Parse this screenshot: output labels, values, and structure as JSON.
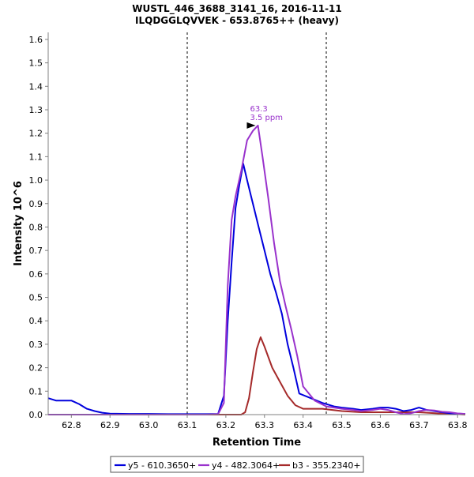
{
  "chart_data": {
    "type": "line",
    "title_line1": "WUSTL_446_3688_3141_16, 2016-11-11",
    "title_line2": "ILQDGGLQVVEK - 653.8765++ (heavy)",
    "xlabel": "Retention Time",
    "ylabel": "Intensity 10^6",
    "xlim": [
      62.74,
      63.82
    ],
    "ylim": [
      0,
      1.63
    ],
    "x_ticks": [
      62.8,
      62.9,
      63.0,
      63.1,
      63.2,
      63.3,
      63.4,
      63.5,
      63.6,
      63.7,
      63.8
    ],
    "x_tick_labels": [
      "62.8",
      "62.9",
      "63.0",
      "63.1",
      "63.2",
      "63.3",
      "63.4",
      "63.5",
      "63.6",
      "63.7",
      "63.8"
    ],
    "y_ticks": [
      0.0,
      0.1,
      0.2,
      0.3,
      0.4,
      0.5,
      0.6,
      0.7,
      0.8,
      0.9,
      1.0,
      1.1,
      1.2,
      1.3,
      1.4,
      1.5,
      1.6
    ],
    "y_tick_labels": [
      "0.0",
      "0.1",
      "0.2",
      "0.3",
      "0.4",
      "0.5",
      "0.6",
      "0.7",
      "0.8",
      "0.9",
      "1.0",
      "1.1",
      "1.2",
      "1.3",
      "1.4",
      "1.5",
      "1.6"
    ],
    "integration_boundaries": [
      63.1,
      63.46
    ],
    "annotation": {
      "x": 63.283,
      "y": 1.233,
      "rt_label": "63.3",
      "ppm_label": "3.5 ppm",
      "color": "#9932CC"
    },
    "series": [
      {
        "name": "y5 - 610.3650+",
        "color": "#0000DD",
        "x": [
          62.74,
          62.76,
          62.78,
          62.8,
          62.82,
          62.84,
          62.86,
          62.88,
          62.9,
          62.95,
          63.0,
          63.05,
          63.1,
          63.15,
          63.18,
          63.195,
          63.205,
          63.215,
          63.225,
          63.235,
          63.245,
          63.255,
          63.27,
          63.285,
          63.3,
          63.315,
          63.33,
          63.345,
          63.36,
          63.375,
          63.39,
          63.42,
          63.45,
          63.48,
          63.5,
          63.53,
          63.55,
          63.58,
          63.6,
          63.62,
          63.64,
          63.66,
          63.68,
          63.7,
          63.72,
          63.74,
          63.76,
          63.78,
          63.8,
          63.82
        ],
        "values": [
          0.07,
          0.06,
          0.06,
          0.06,
          0.045,
          0.025,
          0.015,
          0.008,
          0.004,
          0.003,
          0.003,
          0.002,
          0.002,
          0.002,
          0.003,
          0.08,
          0.4,
          0.65,
          0.88,
          0.98,
          1.07,
          1.0,
          0.9,
          0.8,
          0.7,
          0.6,
          0.52,
          0.43,
          0.3,
          0.2,
          0.09,
          0.07,
          0.05,
          0.035,
          0.03,
          0.025,
          0.02,
          0.025,
          0.03,
          0.03,
          0.025,
          0.015,
          0.02,
          0.03,
          0.02,
          0.015,
          0.01,
          0.006,
          0.004,
          0.003
        ]
      },
      {
        "name": "y4 - 482.3064+",
        "color": "#9932CC",
        "x": [
          62.74,
          62.8,
          62.9,
          63.0,
          63.1,
          63.15,
          63.18,
          63.195,
          63.205,
          63.215,
          63.225,
          63.24,
          63.255,
          63.27,
          63.283,
          63.295,
          63.31,
          63.325,
          63.34,
          63.355,
          63.37,
          63.385,
          63.4,
          63.43,
          63.46,
          63.5,
          63.53,
          63.55,
          63.58,
          63.6,
          63.62,
          63.64,
          63.66,
          63.68,
          63.7,
          63.72,
          63.74,
          63.76,
          63.78,
          63.8,
          63.82
        ],
        "values": [
          0.0,
          0.0,
          0.0,
          0.0,
          0.0,
          0.0,
          0.002,
          0.05,
          0.55,
          0.83,
          0.93,
          1.04,
          1.17,
          1.21,
          1.233,
          1.1,
          0.92,
          0.73,
          0.57,
          0.46,
          0.36,
          0.25,
          0.12,
          0.06,
          0.035,
          0.025,
          0.02,
          0.015,
          0.02,
          0.025,
          0.02,
          0.01,
          0.002,
          0.006,
          0.015,
          0.02,
          0.018,
          0.012,
          0.01,
          0.005,
          0.003
        ]
      },
      {
        "name": "b3 - 355.2340+",
        "color": "#A52A2A",
        "x": [
          62.74,
          62.8,
          62.9,
          63.0,
          63.1,
          63.15,
          63.2,
          63.24,
          63.25,
          63.26,
          63.27,
          63.28,
          63.29,
          63.3,
          63.32,
          63.34,
          63.36,
          63.38,
          63.4,
          63.42,
          63.45,
          63.5,
          63.55,
          63.6,
          63.65,
          63.7,
          63.75,
          63.8,
          63.82
        ],
        "values": [
          0.0,
          0.0,
          0.0,
          0.0,
          0.0,
          0.0,
          0.0,
          0.0,
          0.01,
          0.07,
          0.18,
          0.28,
          0.33,
          0.29,
          0.2,
          0.14,
          0.08,
          0.04,
          0.025,
          0.025,
          0.025,
          0.015,
          0.01,
          0.01,
          0.01,
          0.01,
          0.005,
          0.002,
          0.0
        ]
      }
    ],
    "legend": {
      "position": "bottom-center",
      "entries": [
        "y5 - 610.3650+",
        "y4 - 482.3064+",
        "b3 - 355.2340+"
      ]
    }
  }
}
